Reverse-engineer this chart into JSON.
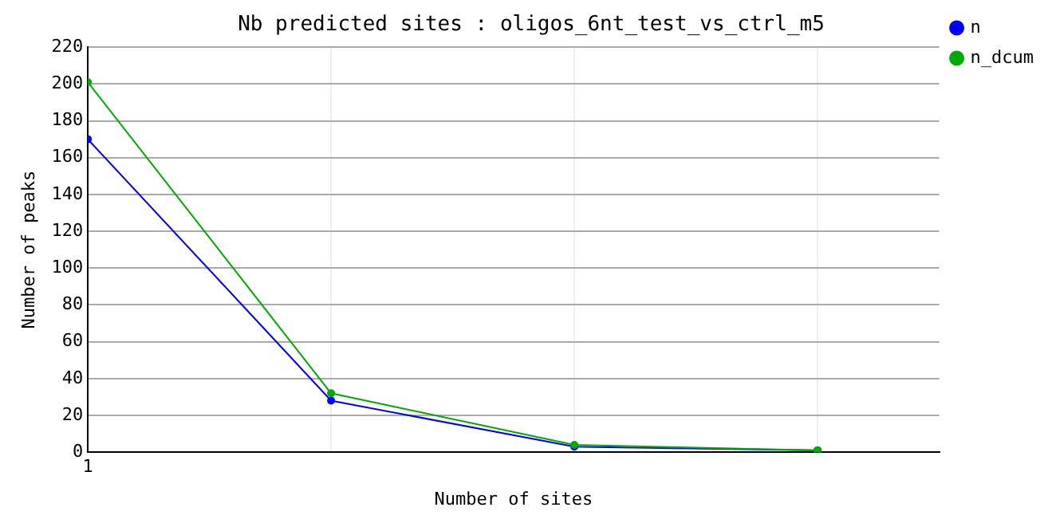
{
  "chart_data": {
    "type": "line",
    "title": "Nb predicted sites : oligos_6nt_test_vs_ctrl_m5",
    "xlabel": "Number of sites",
    "ylabel": "Number of peaks",
    "categories": [
      "1",
      null,
      null,
      null
    ],
    "series": [
      {
        "name": "n",
        "color": "#0000ff",
        "values": [
          170,
          28,
          3,
          1
        ]
      },
      {
        "name": "n_dcum",
        "color": "#00aa00",
        "values": [
          201,
          32,
          4,
          1
        ]
      }
    ],
    "ylim": [
      0,
      220
    ],
    "yticks": [
      0,
      20,
      40,
      60,
      80,
      100,
      120,
      140,
      160,
      180,
      200,
      220
    ],
    "grid": true,
    "legend": "top right",
    "marker": "circle",
    "line_style": "solid"
  }
}
